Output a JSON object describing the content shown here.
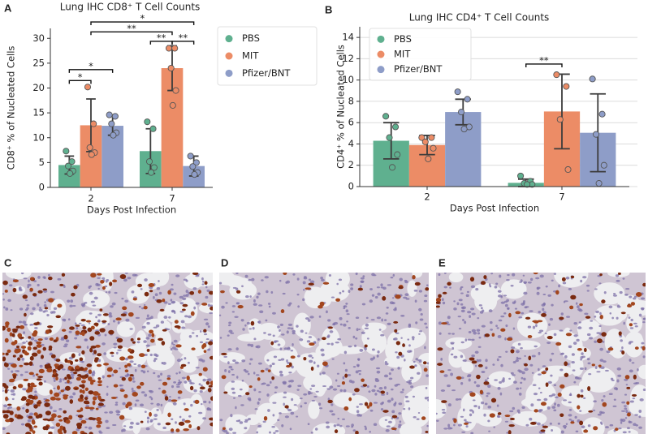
{
  "panel_labels": [
    "A",
    "B",
    "C",
    "D",
    "E"
  ],
  "chart_data": [
    {
      "type": "bar",
      "title": "Lung IHC CD8⁺ T Cell Counts",
      "x_label": "Days Post Infection",
      "y_label": "CD8⁺ % of Nucleated Cells",
      "categories": [
        "2",
        "7"
      ],
      "ylim": [
        0,
        32
      ],
      "yticks": [
        0,
        5,
        10,
        15,
        20,
        25,
        30
      ],
      "grid": false,
      "legend": "outside right",
      "series": [
        {
          "name": "PBS",
          "color": "#5fb08f",
          "values": [
            4.5,
            7.3
          ],
          "errors": [
            1.8,
            4.5
          ],
          "points": [
            [
              7.3,
              5.2,
              4.3,
              3.3,
              2.8
            ],
            [
              13.2,
              11.8,
              5.2,
              4.0,
              3.0
            ]
          ]
        },
        {
          "name": "MIT",
          "color": "#ec8c66",
          "values": [
            12.5,
            24.0
          ],
          "errors": [
            5.3,
            4.5
          ],
          "points": [
            [
              20.2,
              12.8,
              8.0,
              7.0,
              6.6
            ],
            [
              28.0,
              28.0,
              24.0,
              19.5,
              16.5
            ]
          ]
        },
        {
          "name": "Pfizer/BNT",
          "color": "#8e9dc8",
          "values": [
            12.4,
            4.3
          ],
          "errors": [
            1.9,
            2.0
          ],
          "points": [
            [
              14.6,
              14.3,
              12.8,
              11.0,
              10.5
            ],
            [
              6.3,
              5.0,
              4.2,
              3.0,
              2.6
            ]
          ]
        }
      ],
      "brackets": [
        {
          "label": "*",
          "y": 21.5,
          "from": [
            0,
            0
          ],
          "to": [
            1,
            0
          ]
        },
        {
          "label": "*",
          "y": 23.7,
          "from": [
            0,
            0
          ],
          "to": [
            2,
            0
          ]
        },
        {
          "label": "**",
          "y": 29.4,
          "from": [
            0,
            1
          ],
          "to": [
            1,
            1
          ]
        },
        {
          "label": "**",
          "y": 29.4,
          "from": [
            1,
            1
          ],
          "to": [
            2,
            1
          ]
        },
        {
          "label": "**",
          "y": 31.3,
          "from": [
            1,
            0
          ],
          "to": [
            1,
            1
          ]
        },
        {
          "label": "*",
          "y": 33.3,
          "from": [
            1,
            0
          ],
          "to": [
            2,
            1
          ]
        }
      ]
    },
    {
      "type": "bar",
      "title": "Lung IHC CD4⁺ T Cell Counts",
      "x_label": "Days Post Infection",
      "y_label": "CD4⁺ % of Nucleated Cells",
      "categories": [
        "2",
        "7"
      ],
      "ylim": [
        0,
        15
      ],
      "yticks": [
        0,
        2,
        4,
        6,
        8,
        10,
        12,
        14
      ],
      "grid": true,
      "legend": "upper left",
      "series": [
        {
          "name": "PBS",
          "color": "#5fb08f",
          "values": [
            4.3,
            0.35
          ],
          "errors": [
            1.7,
            0.35
          ],
          "points": [
            [
              6.6,
              5.6,
              4.6,
              3.0,
              1.8
            ],
            [
              1.0,
              0.5,
              0.3,
              0.2,
              0.2
            ]
          ]
        },
        {
          "name": "MIT",
          "color": "#ec8c66",
          "values": [
            3.9,
            7.05
          ],
          "errors": [
            0.9,
            3.5
          ],
          "points": [
            [
              4.6,
              4.6,
              4.2,
              3.6,
              2.6
            ],
            [
              10.5,
              9.4,
              6.3,
              1.6
            ]
          ]
        },
        {
          "name": "Pfizer/BNT",
          "color": "#8e9dc8",
          "values": [
            7.0,
            5.05
          ],
          "errors": [
            1.2,
            3.65
          ],
          "points": [
            [
              8.9,
              8.2,
              7.0,
              5.6,
              5.4
            ],
            [
              10.1,
              6.8,
              4.9,
              2.0,
              0.3
            ]
          ]
        }
      ],
      "brackets": [
        {
          "label": "**",
          "y": 11.5,
          "from": [
            0,
            1
          ],
          "to": [
            1,
            1
          ]
        }
      ]
    }
  ]
}
